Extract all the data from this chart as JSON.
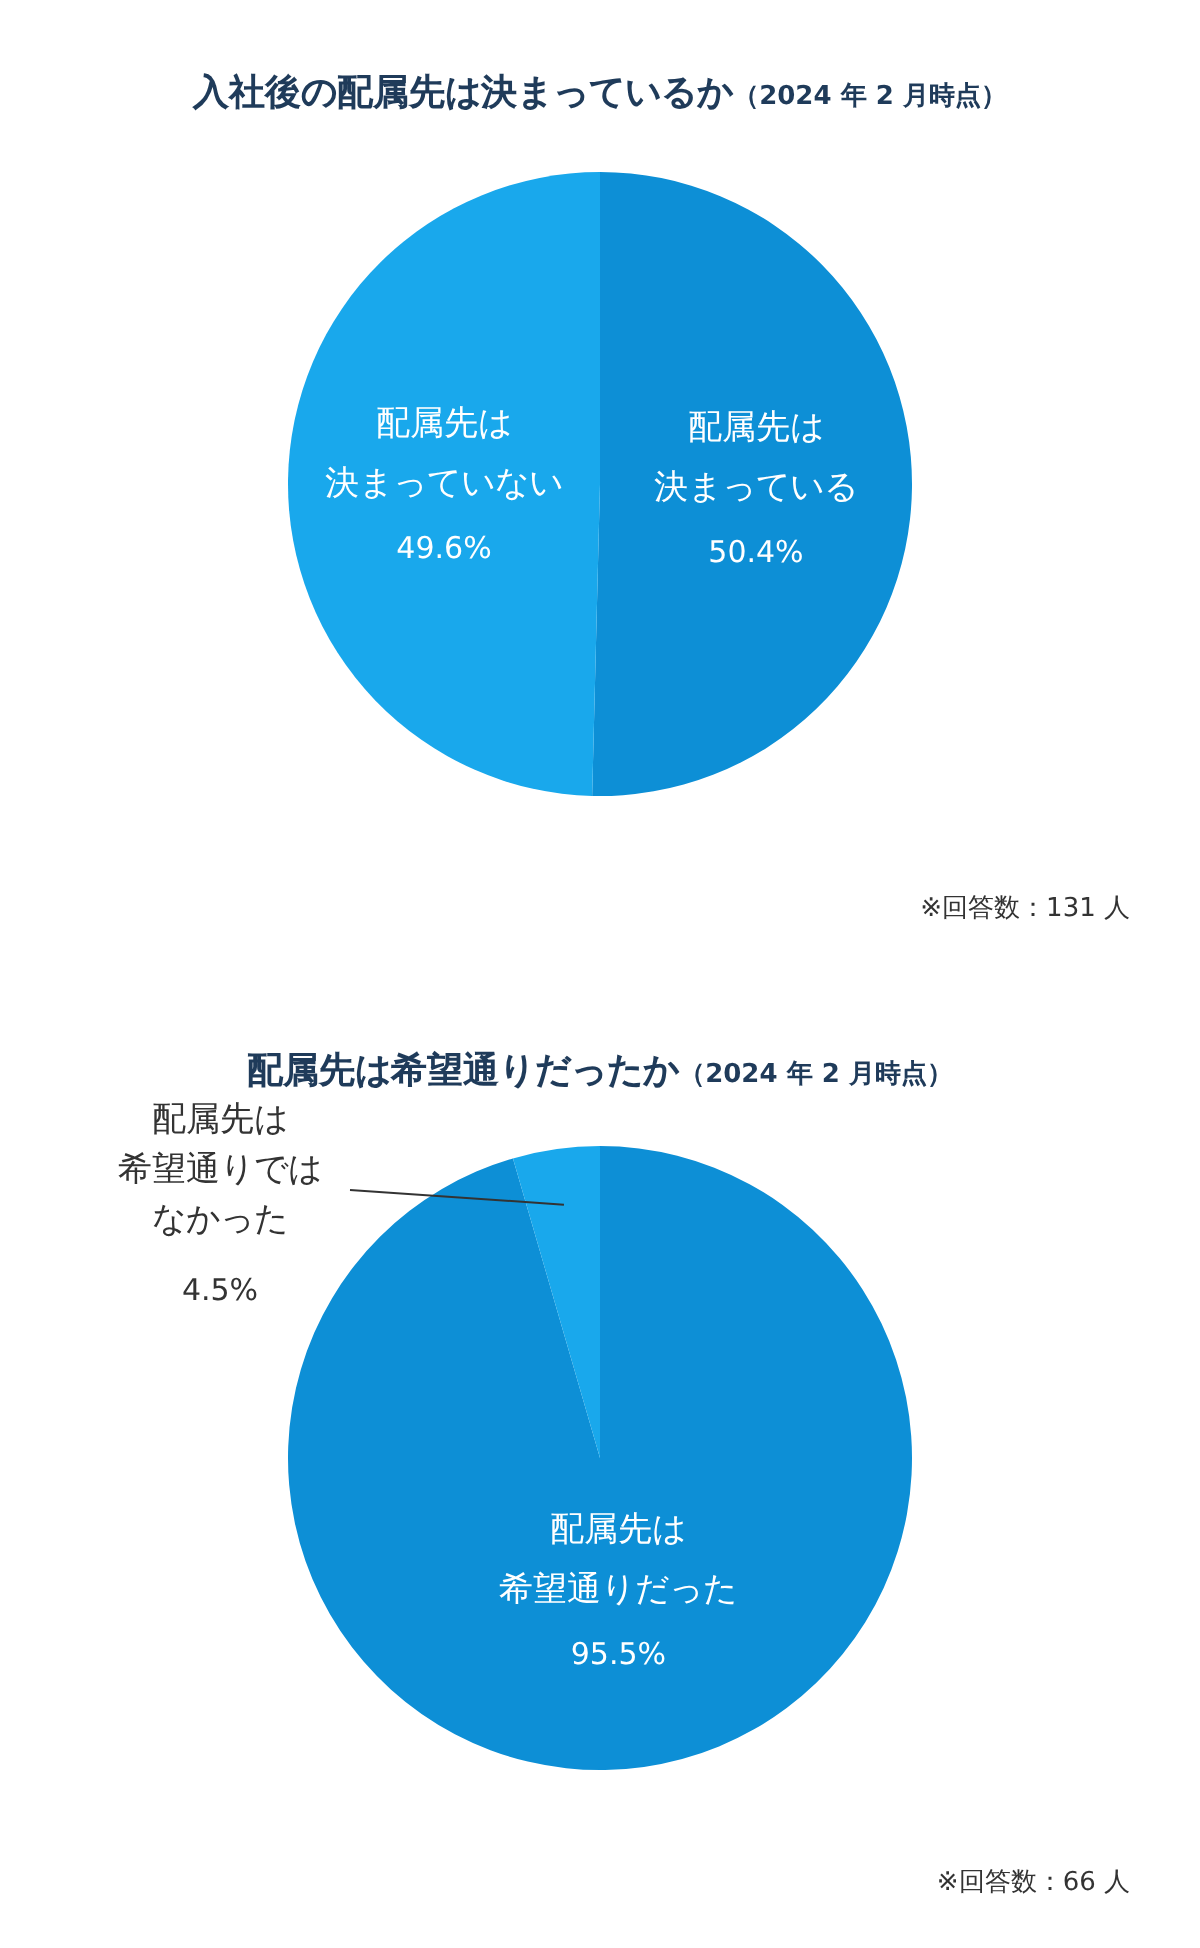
{
  "chart_data": [
    {
      "type": "pie",
      "title": "入社後の配属先は決まっているか",
      "subtitle": "（2024 年 2 月時点）",
      "categories": [
        "配属先は決まっている",
        "配属先は決まっていない"
      ],
      "values": [
        50.4,
        49.6
      ],
      "value_labels": [
        "50.4%",
        "49.6%"
      ],
      "colors": [
        "#0d8fd6",
        "#19a8ec"
      ],
      "annotations": [
        "※回答数：131 人"
      ]
    },
    {
      "type": "pie",
      "title": "配属先は希望通りだったか",
      "subtitle": "（2024 年 2 月時点）",
      "categories": [
        "配属先は希望通りだった",
        "配属先は希望通りではなかった"
      ],
      "values": [
        95.5,
        4.5
      ],
      "value_labels": [
        "95.5%",
        "4.5%"
      ],
      "colors": [
        "#0d8fd6",
        "#19a8ec"
      ],
      "annotations": [
        "※回答数：66 人"
      ]
    }
  ]
}
